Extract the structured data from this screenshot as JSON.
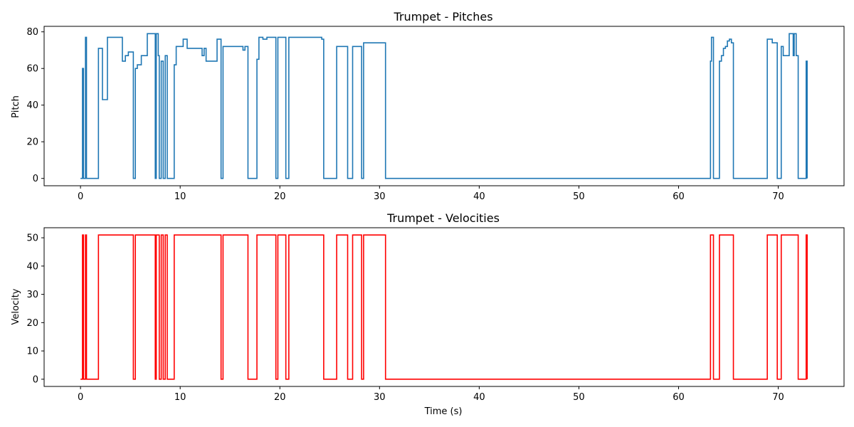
{
  "chart_data": [
    {
      "type": "line",
      "title": "Trumpet - Pitches",
      "xlabel": "",
      "ylabel": "Pitch",
      "color": "#1f77b4",
      "xlim": [
        -3.65,
        76.6
      ],
      "ylim": [
        -4,
        83
      ],
      "xticks": [
        0,
        10,
        20,
        30,
        40,
        50,
        60,
        70
      ],
      "yticks": [
        0,
        20,
        40,
        60,
        80
      ],
      "grid": false,
      "step": true,
      "series": [
        {
          "x": [
            0,
            0.2,
            0.3,
            0.5,
            0.6,
            0.7,
            1.8,
            2.2,
            2.7,
            4.2,
            4.5,
            4.8,
            5.3,
            5.5,
            5.7,
            6.1,
            6.7,
            7.5,
            7.6,
            7.8,
            7.9,
            8.1,
            8.3,
            8.5,
            8.7,
            9.4,
            9.6,
            10.3,
            10.7,
            12.2,
            12.4,
            12.6,
            13.7,
            14.1,
            14.3,
            14.9,
            16.3,
            16.5,
            16.8,
            17.7,
            17.9,
            18.3,
            18.7,
            19.6,
            19.8,
            20.6,
            20.9,
            24.2,
            24.4,
            25.7,
            26.8,
            27.3,
            28.2,
            28.4,
            28.9,
            30.6,
            63.2,
            63.3,
            63.5,
            64.1,
            64.3,
            64.5,
            64.7,
            64.9,
            65.1,
            65.3,
            65.5,
            68.9,
            69.4,
            69.9,
            70.3,
            70.5,
            71.1,
            71.5,
            71.6,
            71.8,
            72.0,
            72.4,
            72.8,
            72.9
          ],
          "y": [
            0,
            60,
            0,
            77,
            0,
            0,
            71,
            43,
            77,
            64,
            67,
            69,
            0,
            60,
            62,
            67,
            79,
            0,
            79,
            67,
            0,
            64,
            0,
            67,
            0,
            62,
            72,
            76,
            71,
            67,
            71,
            64,
            76,
            0,
            72,
            72,
            70,
            72,
            0,
            65,
            77,
            76,
            77,
            0,
            77,
            0,
            77,
            76,
            0,
            72,
            0,
            72,
            0,
            74,
            74,
            0,
            64,
            77,
            0,
            64,
            67,
            71,
            72,
            75,
            76,
            74,
            0,
            76,
            74,
            0,
            72,
            67,
            79,
            67,
            79,
            67,
            0,
            0,
            64,
            0
          ]
        }
      ]
    },
    {
      "type": "line",
      "title": "Trumpet - Velocities",
      "xlabel": "Time (s)",
      "ylabel": "Velocity",
      "color": "#ff0000",
      "xlim": [
        -3.65,
        76.6
      ],
      "ylim": [
        -2.55,
        53.55
      ],
      "xticks": [
        0,
        10,
        20,
        30,
        40,
        50,
        60,
        70
      ],
      "yticks": [
        0,
        10,
        20,
        30,
        40,
        50
      ],
      "grid": false,
      "step": true,
      "series": [
        {
          "x": [
            0,
            0.2,
            0.3,
            0.5,
            0.6,
            0.7,
            1.8,
            2.2,
            2.7,
            4.2,
            4.5,
            4.8,
            5.3,
            5.5,
            5.7,
            6.1,
            6.7,
            7.5,
            7.6,
            7.8,
            7.9,
            8.1,
            8.3,
            8.5,
            8.7,
            9.4,
            9.6,
            10.3,
            10.7,
            12.2,
            12.4,
            12.6,
            13.7,
            14.1,
            14.3,
            14.9,
            16.3,
            16.5,
            16.8,
            17.7,
            17.9,
            18.3,
            18.7,
            19.6,
            19.8,
            20.6,
            20.9,
            24.2,
            24.4,
            25.7,
            26.8,
            27.3,
            28.2,
            28.4,
            28.9,
            30.6,
            63.2,
            63.3,
            63.5,
            64.1,
            64.3,
            64.5,
            64.7,
            64.9,
            65.1,
            65.3,
            65.5,
            68.9,
            69.4,
            69.9,
            70.3,
            70.5,
            71.1,
            71.5,
            71.6,
            71.8,
            72.0,
            72.4,
            72.8,
            72.9
          ],
          "y": [
            0,
            51,
            0,
            51,
            0,
            0,
            51,
            51,
            51,
            51,
            51,
            51,
            0,
            51,
            51,
            51,
            51,
            0,
            51,
            51,
            0,
            51,
            0,
            51,
            0,
            51,
            51,
            51,
            51,
            51,
            51,
            51,
            51,
            0,
            51,
            51,
            51,
            51,
            0,
            51,
            51,
            51,
            51,
            0,
            51,
            0,
            51,
            51,
            0,
            51,
            0,
            51,
            0,
            51,
            51,
            0,
            51,
            51,
            0,
            51,
            51,
            51,
            51,
            51,
            51,
            51,
            0,
            51,
            51,
            0,
            51,
            51,
            51,
            51,
            51,
            51,
            0,
            0,
            51,
            0
          ]
        }
      ]
    }
  ]
}
